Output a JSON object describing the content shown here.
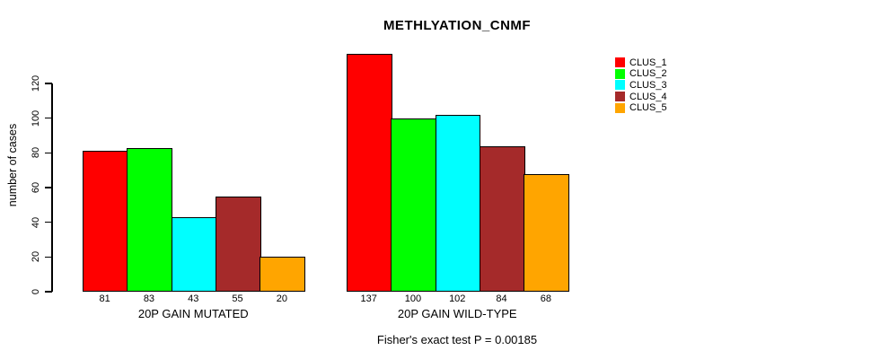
{
  "chart_data": {
    "type": "bar",
    "title": "METHLYATION_CNMF",
    "ylabel": "number of cases",
    "xlabel": "",
    "yticks": [
      0,
      20,
      40,
      60,
      80,
      100,
      120
    ],
    "ylim": [
      0,
      140
    ],
    "grid": false,
    "legend_position": "right",
    "legend": [
      {
        "label": "CLUS_1",
        "color": "#FF0000"
      },
      {
        "label": "CLUS_2",
        "color": "#00FF00"
      },
      {
        "label": "CLUS_3",
        "color": "#00FFFF"
      },
      {
        "label": "CLUS_4",
        "color": "#A52A2A"
      },
      {
        "label": "CLUS_5",
        "color": "#FFA500"
      }
    ],
    "groups": [
      {
        "label": "20P GAIN MUTATED",
        "values": [
          81,
          83,
          43,
          55,
          20
        ]
      },
      {
        "label": "20P GAIN WILD-TYPE",
        "values": [
          137,
          100,
          102,
          84,
          68
        ]
      }
    ],
    "footnote": "Fisher's exact test P = 0.00185"
  }
}
